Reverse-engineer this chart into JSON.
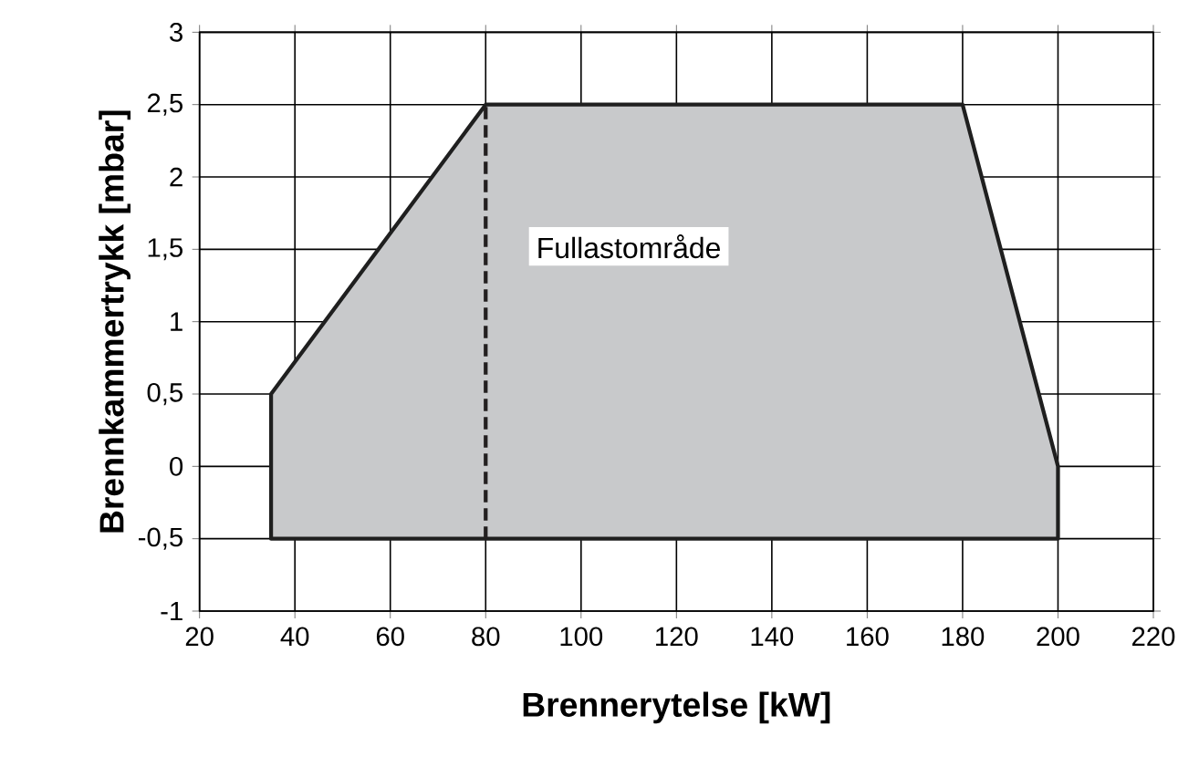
{
  "chart_data": {
    "type": "area",
    "xlabel": "Brennerytelse [kW]",
    "ylabel": "Brennkammertrykk [mbar]",
    "xlim": [
      20,
      220
    ],
    "xticks": [
      20,
      40,
      60,
      80,
      100,
      120,
      140,
      160,
      180,
      200,
      220
    ],
    "ylim": [
      -1,
      3
    ],
    "yticks": [
      -1,
      {
        "value": -0.5,
        "label": "-0,5"
      },
      0,
      {
        "value": 0.5,
        "label": "0,5"
      },
      1,
      {
        "value": 1.5,
        "label": "1,5"
      },
      2,
      {
        "value": 2.5,
        "label": "2,5"
      },
      3
    ],
    "grid": true,
    "series": [
      {
        "color": "#c8c9cb",
        "x": [
          35,
          35,
          80,
          180,
          200,
          200,
          35
        ],
        "values": [
          -0.5,
          0.5,
          2.5,
          2.5,
          0,
          -0.5,
          -0.5
        ]
      },
      {
        "type": "line",
        "color": "#231f20",
        "line_style": "dashed",
        "x": [
          80,
          80
        ],
        "values": [
          -0.5,
          2.5
        ]
      }
    ],
    "annotations": [
      "Fullastområde"
    ]
  }
}
